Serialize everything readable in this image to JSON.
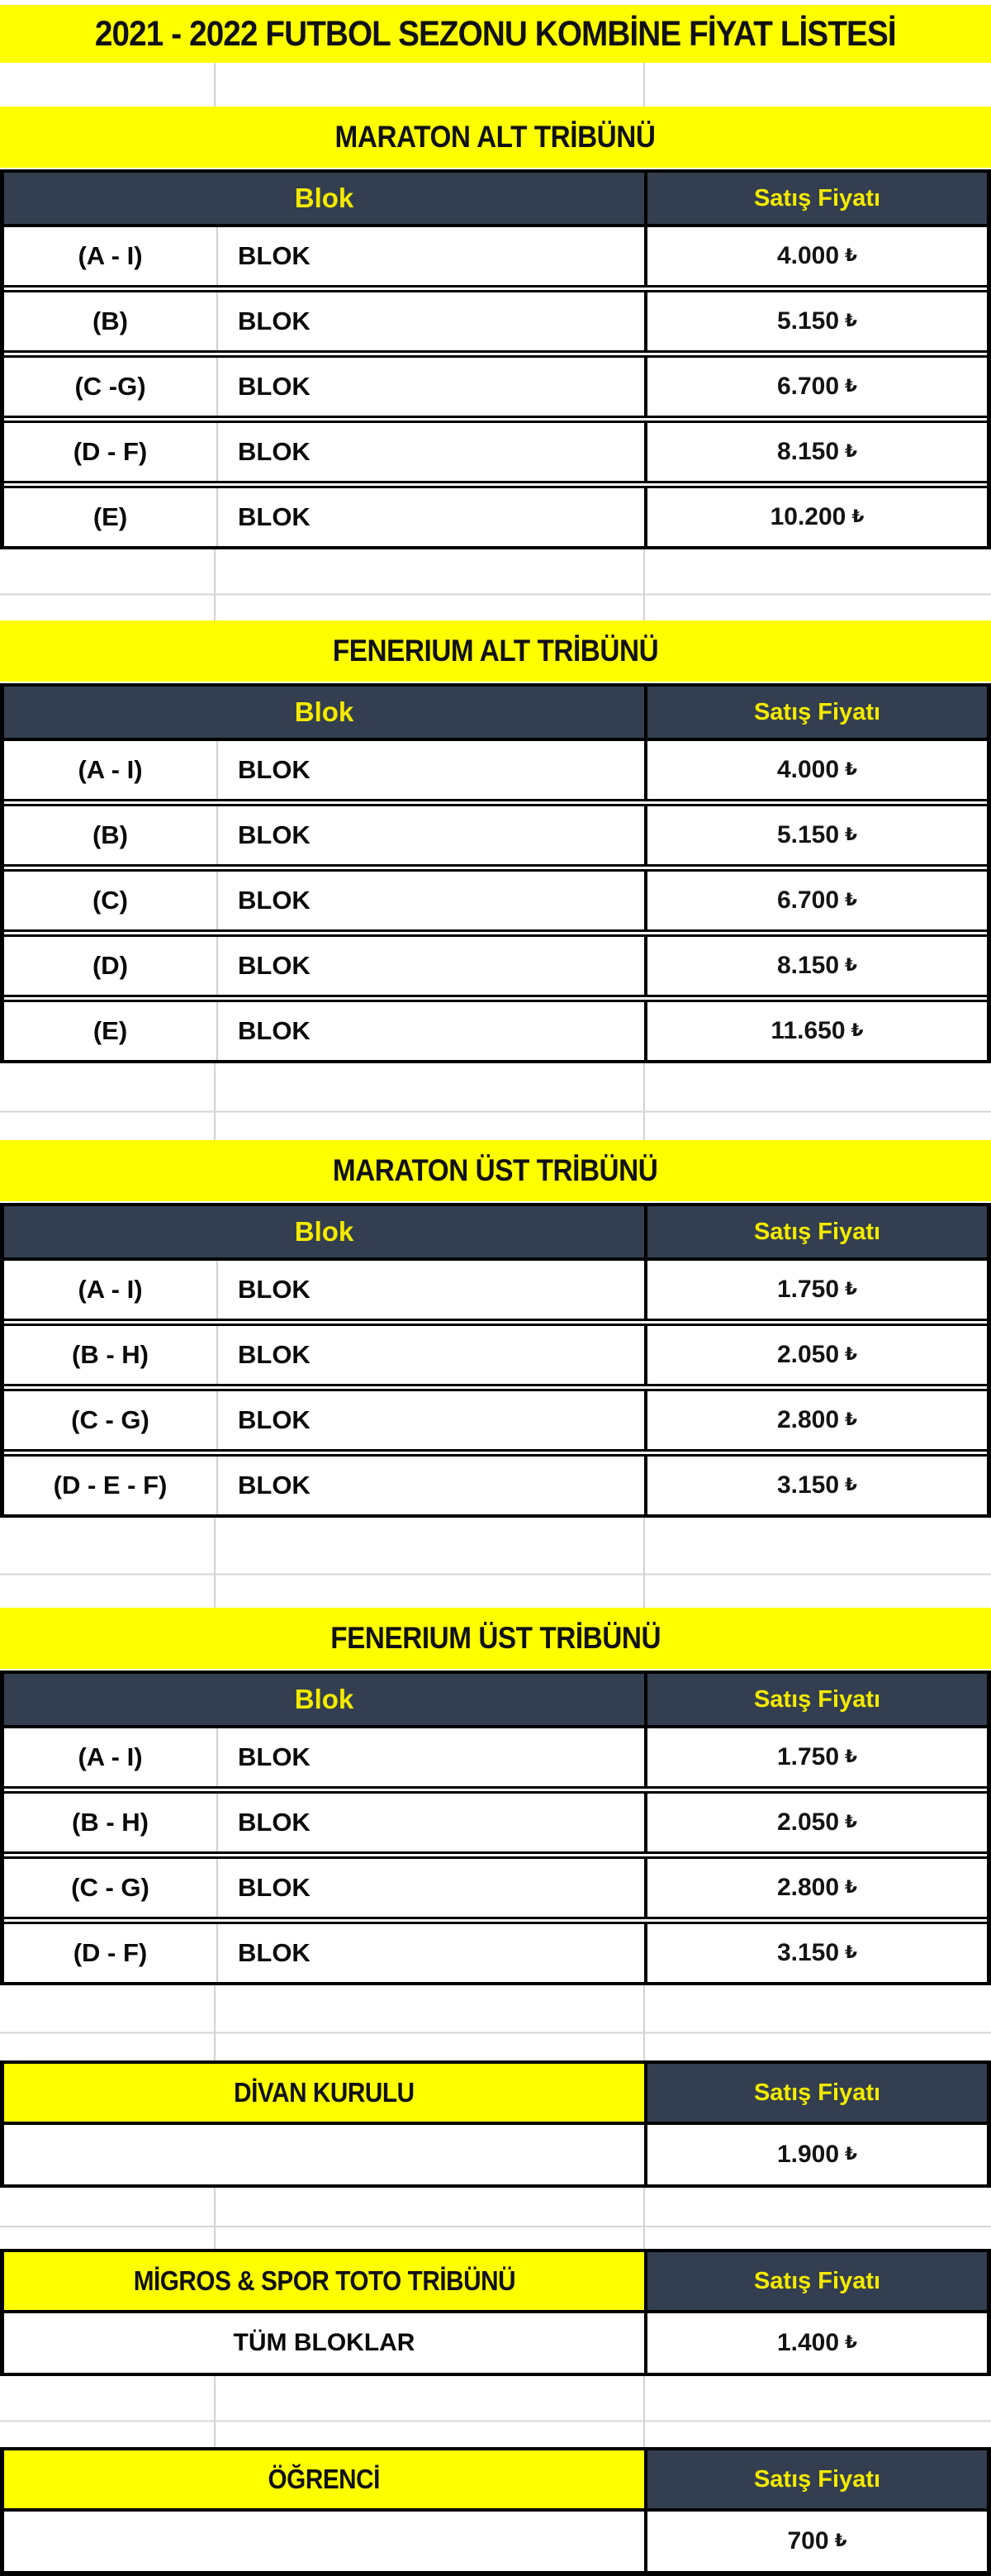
{
  "title": "2021 - 2022 FUTBOL SEZONU KOMBİNE FİYAT LİSTESİ",
  "currency": "₺",
  "colors": {
    "banner_yellow": "#FFFF00",
    "header_dark": "#333F50",
    "header_text_yellow": "#F5EA00"
  },
  "col_headers": {
    "blok": "Blok",
    "price": "Satış Fiyatı"
  },
  "sections": [
    {
      "id": "maraton-alt",
      "layout": "full",
      "name": "MARATON ALT TRİBÜNÜ",
      "rows": [
        {
          "range": "(A - I)",
          "label": "BLOK",
          "price": "4.000"
        },
        {
          "range": "(B)",
          "label": "BLOK",
          "price": "5.150"
        },
        {
          "range": "(C -G)",
          "label": "BLOK",
          "price": "6.700"
        },
        {
          "range": "(D - F)",
          "label": "BLOK",
          "price": "8.150"
        },
        {
          "range": "(E)",
          "label": "BLOK",
          "price": "10.200"
        }
      ]
    },
    {
      "id": "fenerium-alt",
      "layout": "full",
      "name": "FENERIUM ALT TRİBÜNÜ",
      "rows": [
        {
          "range": "(A - I)",
          "label": "BLOK",
          "price": "4.000"
        },
        {
          "range": "(B)",
          "label": "BLOK",
          "price": "5.150"
        },
        {
          "range": "(C)",
          "label": "BLOK",
          "price": "6.700"
        },
        {
          "range": "(D)",
          "label": "BLOK",
          "price": "8.150"
        },
        {
          "range": "(E)",
          "label": "BLOK",
          "price": "11.650"
        }
      ]
    },
    {
      "id": "maraton-ust",
      "layout": "full",
      "name": "MARATON ÜST TRİBÜNÜ",
      "rows": [
        {
          "range": "(A - I)",
          "label": "BLOK",
          "price": "1.750"
        },
        {
          "range": "(B - H)",
          "label": "BLOK",
          "price": "2.050"
        },
        {
          "range": "(C - G)",
          "label": "BLOK",
          "price": "2.800"
        },
        {
          "range": "(D - E - F)",
          "label": "BLOK",
          "price": "3.150"
        }
      ]
    },
    {
      "id": "fenerium-ust",
      "layout": "full",
      "name": "FENERIUM ÜST TRİBÜNÜ",
      "rows": [
        {
          "range": "(A - I)",
          "label": "BLOK",
          "price": "1.750"
        },
        {
          "range": "(B - H)",
          "label": "BLOK",
          "price": "2.050"
        },
        {
          "range": "(C - G)",
          "label": "BLOK",
          "price": "2.800"
        },
        {
          "range": "(D - F)",
          "label": "BLOK",
          "price": "3.150"
        }
      ]
    },
    {
      "id": "divan-kurulu",
      "layout": "simple",
      "name": "DİVAN KURULU",
      "rows": [
        {
          "label": "",
          "price": "1.900"
        }
      ]
    },
    {
      "id": "migros-spor-toto",
      "layout": "simple",
      "name": "MİGROS & SPOR TOTO TRİBÜNÜ",
      "rows": [
        {
          "label": "TÜM BLOKLAR",
          "price": "1.400"
        }
      ]
    },
    {
      "id": "ogrenci",
      "layout": "simple",
      "name": "ÖĞRENCİ",
      "rows": [
        {
          "label": "",
          "price": "700"
        }
      ]
    }
  ]
}
